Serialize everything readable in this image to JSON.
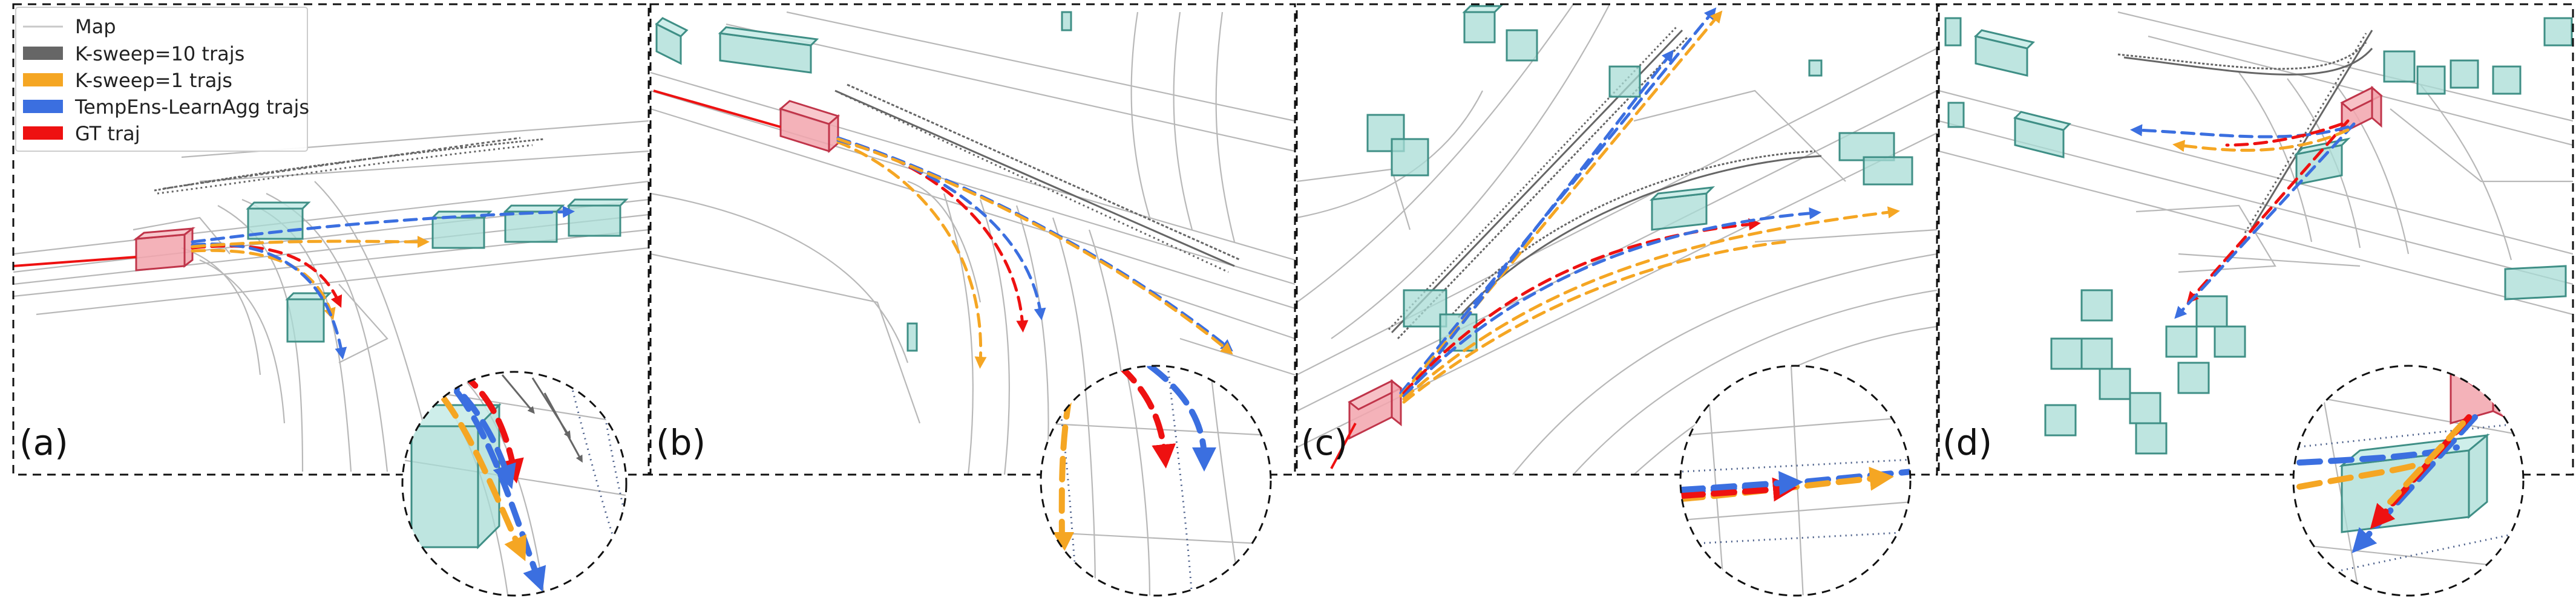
{
  "legend": {
    "items": [
      {
        "label": "Map",
        "color": "#c8c8c8",
        "kind": "line"
      },
      {
        "label": "K-sweep=10 trajs",
        "color": "#666666",
        "kind": "patch"
      },
      {
        "label": "K-sweep=1 trajs",
        "color": "#f5a623",
        "kind": "patch"
      },
      {
        "label": "TempEns-LearnAgg trajs",
        "color": "#3b6fe0",
        "kind": "patch"
      },
      {
        "label": "GT traj",
        "color": "#ee1111",
        "kind": "patch"
      }
    ]
  },
  "panels": [
    {
      "label": "(a)"
    },
    {
      "label": "(b)"
    },
    {
      "label": "(c)"
    },
    {
      "label": "(d)"
    }
  ],
  "colors": {
    "gt": "#ee1111",
    "ksweep1": "#f5a623",
    "tempens": "#3b6fe0",
    "ksweep10": "#666666",
    "map": "#c8c8c8",
    "box": "#a8dcd6",
    "ego": "#f2a4ad"
  }
}
